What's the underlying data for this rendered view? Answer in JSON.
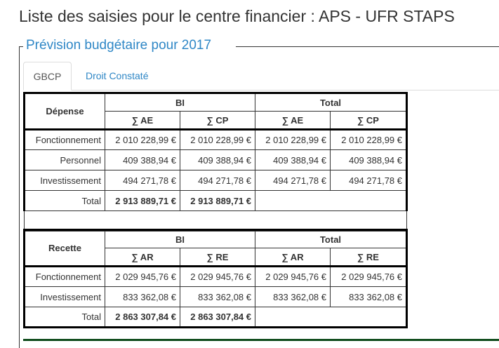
{
  "page": {
    "title": "Liste des saisies pour le centre financier : APS - UFR STAPS",
    "legend": "Prévision budgétaire pour 2017"
  },
  "tabs": [
    {
      "label": "GBCP",
      "active": true
    },
    {
      "label": "Droit Constaté",
      "active": false
    }
  ],
  "depense": {
    "section_label": "Dépense",
    "group_bi": "BI",
    "group_total": "Total",
    "col_a": "∑ AE",
    "col_b": "∑ CP",
    "rows": [
      {
        "label": "Fonctionnement",
        "bi_a": "2 010 228,99 €",
        "bi_b": "2 010 228,99 €",
        "tot_a": "2 010 228,99 €",
        "tot_b": "2 010 228,99 €"
      },
      {
        "label": "Personnel",
        "bi_a": "409 388,94 €",
        "bi_b": "409 388,94 €",
        "tot_a": "409 388,94 €",
        "tot_b": "409 388,94 €"
      },
      {
        "label": "Investissement",
        "bi_a": "494 271,78 €",
        "bi_b": "494 271,78 €",
        "tot_a": "494 271,78 €",
        "tot_b": "494 271,78 €"
      }
    ],
    "total": {
      "label": "Total",
      "bi_a": "2 913 889,71 €",
      "bi_b": "2 913 889,71 €"
    }
  },
  "recette": {
    "section_label": "Recette",
    "group_bi": "BI",
    "group_total": "Total",
    "col_a": "∑ AR",
    "col_b": "∑ RE",
    "rows": [
      {
        "label": "Fonctionnement",
        "bi_a": "2 029 945,76 €",
        "bi_b": "2 029 945,76 €",
        "tot_a": "2 029 945,76 €",
        "tot_b": "2 029 945,76 €"
      },
      {
        "label": "Investissement",
        "bi_a": "833 362,08 €",
        "bi_b": "833 362,08 €",
        "tot_a": "833 362,08 €",
        "tot_b": "833 362,08 €"
      }
    ],
    "total": {
      "label": "Total",
      "bi_a": "2 863 307,84 €",
      "bi_b": "2 863 307,84 €"
    }
  }
}
